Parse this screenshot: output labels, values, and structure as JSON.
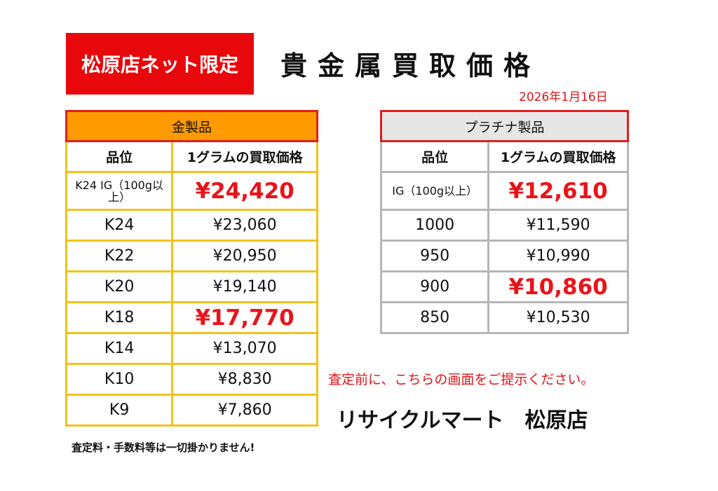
{
  "header": {
    "badge": "松原店ネット限定",
    "title": "貴金属買取価格",
    "date": "2026年1月16日"
  },
  "gold_table": {
    "title": "金製品",
    "col_grade": "品位",
    "col_price": "1グラムの買取価格",
    "rows": [
      {
        "grade": "K24 IG（100g以上）",
        "price": "¥24,420"
      },
      {
        "grade": "K24",
        "price": "¥23,060"
      },
      {
        "grade": "K22",
        "price": "¥20,950"
      },
      {
        "grade": "K20",
        "price": "¥19,140"
      },
      {
        "grade": "K18",
        "price": "¥17,770"
      },
      {
        "grade": "K14",
        "price": "¥13,070"
      },
      {
        "grade": "K10",
        "price": "¥8,830"
      },
      {
        "grade": "K9",
        "price": "¥7,860"
      }
    ]
  },
  "platinum_table": {
    "title": "プラチナ製品",
    "col_grade": "品位",
    "col_price": "1グラムの買取価格",
    "rows": [
      {
        "grade": "IG（100g以上）",
        "price": "¥12,610"
      },
      {
        "grade": "1000",
        "price": "¥11,590"
      },
      {
        "grade": "950",
        "price": "¥10,990"
      },
      {
        "grade": "900",
        "price": "¥10,860"
      },
      {
        "grade": "850",
        "price": "¥10,530"
      }
    ]
  },
  "notice": "査定前に、こちらの画面をご提示ください。",
  "store_name": "リサイクルマート　松原店",
  "footnote": "査定料・手数料等は一切掛かりません!",
  "colors": {
    "accent_red": "#e8080c",
    "gold_header": "#ff9b00",
    "gold_border": "#f2c21b",
    "platinum_header": "#e6e6e6",
    "platinum_border": "#b6b6b6"
  }
}
